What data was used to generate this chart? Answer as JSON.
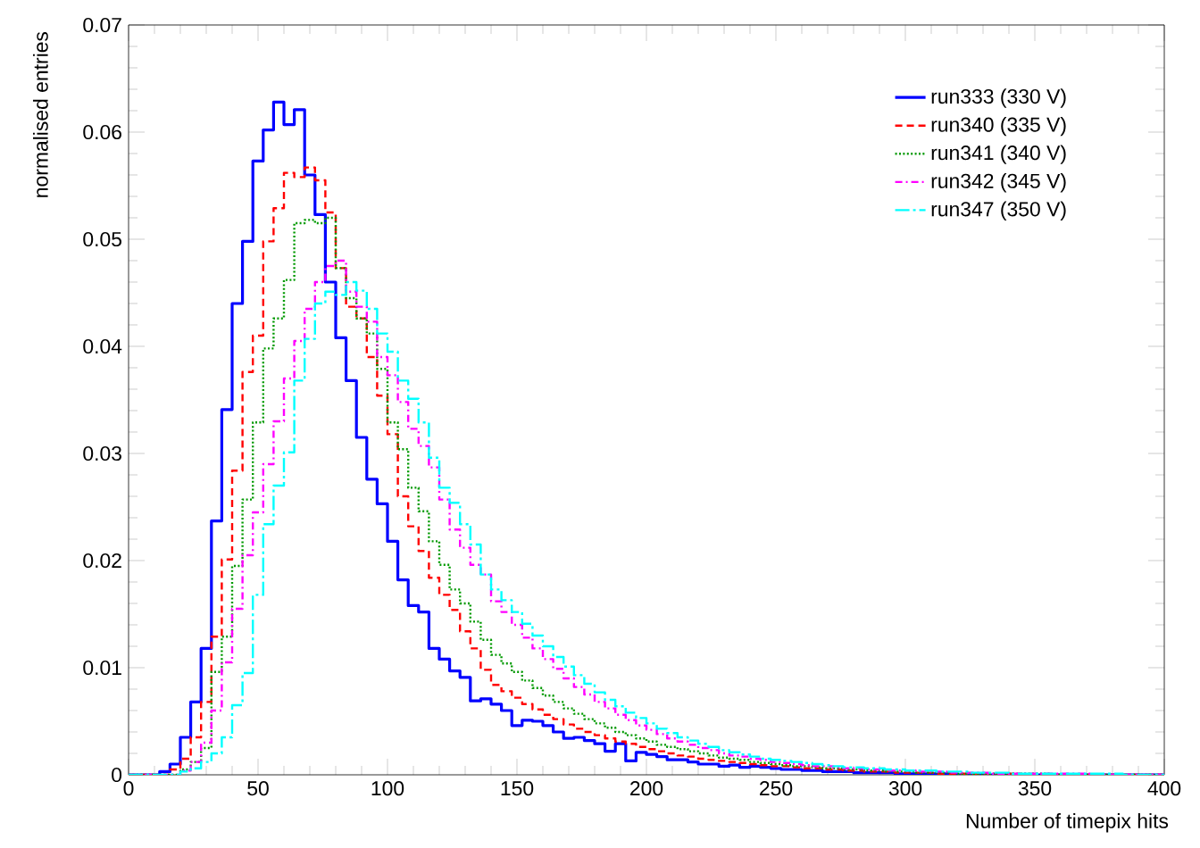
{
  "chart_data": {
    "type": "histogram",
    "xlabel": "Number of timepix hits",
    "ylabel": "normalised entries",
    "bins": [
      0,
      4,
      8,
      12,
      16,
      20,
      24,
      28,
      32,
      36,
      40,
      44,
      48,
      52,
      56,
      60,
      64,
      68,
      72,
      76,
      80,
      84,
      88,
      92,
      96,
      100,
      104,
      108,
      112,
      116,
      120,
      124,
      128,
      132,
      136,
      140,
      144,
      148,
      152,
      156,
      160,
      164,
      168,
      172,
      176,
      180,
      184,
      188,
      192,
      196,
      200,
      204,
      208,
      212,
      216,
      220,
      224,
      228,
      232,
      236,
      240,
      244,
      248,
      252,
      256,
      260,
      264,
      268,
      272,
      276,
      280,
      284,
      288,
      292,
      296,
      300,
      304,
      308,
      312,
      316,
      320,
      324,
      328,
      332,
      336,
      340,
      344,
      348,
      352,
      356,
      360,
      364,
      368,
      372,
      376,
      380,
      384,
      388,
      392,
      396,
      400
    ],
    "xlim": [
      0,
      400
    ],
    "xticks": [
      0,
      50,
      100,
      150,
      200,
      250,
      300,
      350,
      400
    ],
    "ylim": [
      0,
      0.07
    ],
    "yticks": [
      0,
      0.01,
      0.02,
      0.03,
      0.04,
      0.05,
      0.06,
      0.07
    ],
    "legend": "top right",
    "marker": "none",
    "series": [
      {
        "name": "run333 (330 V)",
        "color": "#0000ff",
        "line_style": "solid",
        "values": [
          0,
          0,
          0,
          0.0003,
          0.001,
          0.0035,
          0.0068,
          0.0118,
          0.0237,
          0.0341,
          0.044,
          0.0498,
          0.0573,
          0.0602,
          0.0628,
          0.0607,
          0.0621,
          0.056,
          0.0523,
          0.046,
          0.0408,
          0.0368,
          0.0315,
          0.0276,
          0.0253,
          0.0218,
          0.0182,
          0.0158,
          0.0152,
          0.0118,
          0.0108,
          0.0097,
          0.0091,
          0.0069,
          0.0071,
          0.0066,
          0.006,
          0.0046,
          0.0051,
          0.005,
          0.0046,
          0.004,
          0.0034,
          0.0035,
          0.0032,
          0.0029,
          0.0022,
          0.0029,
          0.0013,
          0.0021,
          0.0019,
          0.0017,
          0.0014,
          0.0014,
          0.0012,
          0.001,
          0.001,
          0.0008,
          0.0009,
          0.0007,
          0.0008,
          0.0007,
          0.0006,
          0.0005,
          0.0005,
          0.0004,
          0.0004,
          0.0003,
          0.0003,
          0.0003,
          0.0002,
          0.0002,
          0.0002,
          0.0002,
          0.0001,
          0.0001,
          0.0001,
          0.0001,
          0.0001,
          0.0001,
          0,
          0,
          0,
          0,
          0,
          0,
          0,
          0,
          0,
          0,
          0,
          0,
          0,
          0,
          0,
          0,
          0,
          0,
          0,
          0
        ]
      },
      {
        "name": "run340 (335 V)",
        "color": "#ff0000",
        "line_style": "dashed",
        "values": [
          0,
          0,
          0,
          0,
          0.0005,
          0.0015,
          0.0035,
          0.0068,
          0.0129,
          0.0201,
          0.0284,
          0.0376,
          0.041,
          0.0498,
          0.0529,
          0.0562,
          0.0558,
          0.0567,
          0.0555,
          0.0525,
          0.0473,
          0.0437,
          0.0426,
          0.039,
          0.0354,
          0.0318,
          0.026,
          0.0232,
          0.0209,
          0.0184,
          0.0168,
          0.0154,
          0.0134,
          0.0118,
          0.0098,
          0.0084,
          0.0078,
          0.0072,
          0.0066,
          0.0061,
          0.0056,
          0.0052,
          0.0047,
          0.0043,
          0.004,
          0.0037,
          0.0034,
          0.0031,
          0.0029,
          0.0026,
          0.0024,
          0.0022,
          0.002,
          0.0018,
          0.0017,
          0.0015,
          0.0014,
          0.0013,
          0.0012,
          0.0011,
          0.001,
          0.0009,
          0.0008,
          0.0008,
          0.0007,
          0.0006,
          0.0006,
          0.0005,
          0.0005,
          0.0004,
          0.0004,
          0.0003,
          0.0003,
          0.0003,
          0.0002,
          0.0002,
          0.0002,
          0.0002,
          0.0001,
          0.0001,
          0.0001,
          0.0001,
          0.0001,
          0.0001,
          0.0001,
          0.0001,
          0,
          0,
          0,
          0,
          0,
          0,
          0,
          0,
          0,
          0,
          0,
          0,
          0,
          0
        ]
      },
      {
        "name": "run341 (340 V)",
        "color": "#009900",
        "line_style": "dotted",
        "values": [
          0,
          0,
          0,
          0,
          0,
          0.0005,
          0.0012,
          0.0025,
          0.0096,
          0.0129,
          0.0195,
          0.0257,
          0.0329,
          0.0398,
          0.0426,
          0.0462,
          0.0515,
          0.0518,
          0.0515,
          0.052,
          0.0473,
          0.0445,
          0.0426,
          0.0412,
          0.0379,
          0.0329,
          0.0304,
          0.0268,
          0.0246,
          0.0218,
          0.0196,
          0.0173,
          0.016,
          0.0143,
          0.0126,
          0.0112,
          0.0104,
          0.0096,
          0.0088,
          0.0081,
          0.0074,
          0.0068,
          0.0062,
          0.0057,
          0.0052,
          0.0048,
          0.0044,
          0.004,
          0.0037,
          0.0034,
          0.0031,
          0.0028,
          0.0026,
          0.0024,
          0.0022,
          0.002,
          0.0018,
          0.0016,
          0.0015,
          0.0014,
          0.0012,
          0.0011,
          0.001,
          0.0009,
          0.0008,
          0.0008,
          0.0007,
          0.0006,
          0.0006,
          0.0005,
          0.0005,
          0.0004,
          0.0004,
          0.0003,
          0.0003,
          0.0003,
          0.0002,
          0.0002,
          0.0002,
          0.0002,
          0.0001,
          0.0001,
          0.0001,
          0.0001,
          0.0001,
          0.0001,
          0.0001,
          0.0001,
          0.0001,
          0,
          0,
          0,
          0,
          0,
          0,
          0,
          0,
          0,
          0,
          0
        ]
      },
      {
        "name": "run342 (345 V)",
        "color": "#ff00ff",
        "line_style": "dashdot",
        "values": [
          0,
          0,
          0,
          0,
          0,
          0.0004,
          0.0012,
          0.003,
          0.006,
          0.0105,
          0.0155,
          0.0205,
          0.0245,
          0.029,
          0.033,
          0.037,
          0.0405,
          0.0435,
          0.046,
          0.0475,
          0.048,
          0.0451,
          0.0437,
          0.0423,
          0.039,
          0.0373,
          0.0348,
          0.0323,
          0.0307,
          0.0287,
          0.0257,
          0.0229,
          0.0212,
          0.0196,
          0.0187,
          0.0162,
          0.0152,
          0.014,
          0.0128,
          0.0118,
          0.0108,
          0.0099,
          0.009,
          0.0082,
          0.0075,
          0.0068,
          0.0062,
          0.0056,
          0.0051,
          0.0046,
          0.0042,
          0.0038,
          0.0034,
          0.0031,
          0.0028,
          0.0025,
          0.0023,
          0.002,
          0.0018,
          0.0017,
          0.0015,
          0.0014,
          0.0012,
          0.0011,
          0.001,
          0.0009,
          0.0008,
          0.0008,
          0.0007,
          0.0006,
          0.0006,
          0.0005,
          0.0005,
          0.0004,
          0.0004,
          0.0004,
          0.0003,
          0.0003,
          0.0003,
          0.0002,
          0.0002,
          0.0002,
          0.0002,
          0.0001,
          0.0001,
          0.0001,
          0.0001,
          0.0001,
          0.0001,
          0.0001,
          0.0001,
          0.0001,
          0.0001,
          0,
          0,
          0,
          0,
          0,
          0,
          0
        ]
      },
      {
        "name": "run347 (350 V)",
        "color": "#00ffff",
        "line_style": "longdashdot",
        "values": [
          0,
          0,
          0,
          0,
          0,
          0.0003,
          0.0006,
          0.0012,
          0.002,
          0.0035,
          0.0065,
          0.0095,
          0.0168,
          0.0234,
          0.027,
          0.0301,
          0.0368,
          0.0407,
          0.044,
          0.0451,
          0.0448,
          0.046,
          0.0452,
          0.0435,
          0.0412,
          0.0395,
          0.0368,
          0.0351,
          0.0329,
          0.0296,
          0.0268,
          0.0254,
          0.0234,
          0.0215,
          0.0187,
          0.0173,
          0.0163,
          0.0152,
          0.0141,
          0.013,
          0.012,
          0.011,
          0.0101,
          0.0093,
          0.0085,
          0.0077,
          0.007,
          0.0064,
          0.0058,
          0.0053,
          0.0048,
          0.0043,
          0.0039,
          0.0035,
          0.0032,
          0.0029,
          0.0026,
          0.0023,
          0.0021,
          0.0019,
          0.0017,
          0.0015,
          0.0014,
          0.0013,
          0.0012,
          0.0011,
          0.001,
          0.0009,
          0.0008,
          0.0007,
          0.0007,
          0.0006,
          0.0006,
          0.0005,
          0.0005,
          0.0004,
          0.0004,
          0.0004,
          0.0003,
          0.0003,
          0.0003,
          0.0002,
          0.0002,
          0.0002,
          0.0002,
          0.0001,
          0.0001,
          0.0001,
          0.0001,
          0.0001,
          0.0001,
          0.0001,
          0.0001,
          0.0001,
          0.0001,
          0.0001,
          0,
          0,
          0,
          0
        ]
      }
    ]
  }
}
